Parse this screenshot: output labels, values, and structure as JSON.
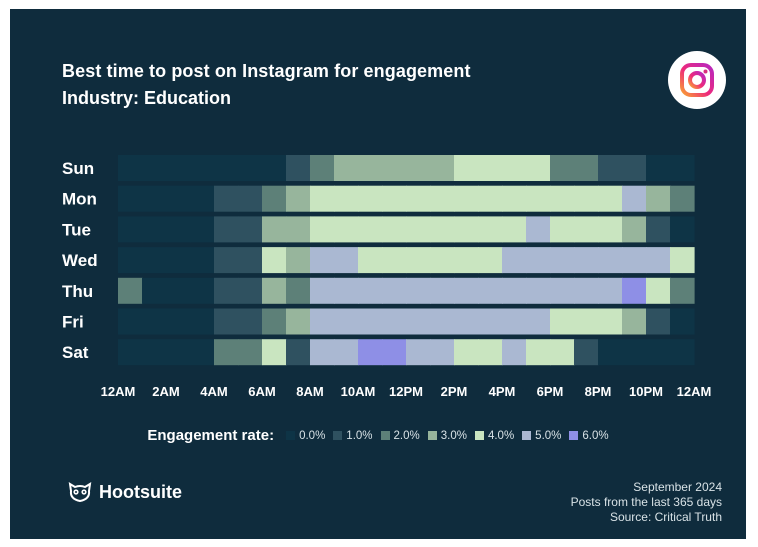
{
  "title": "Best time to post on Instagram for engagement",
  "subtitle": "Industry: Education",
  "brand": "Hootsuite",
  "footer": {
    "date": "September 2024",
    "posts": "Posts from the last 365 days",
    "source": "Source: Critical Truth"
  },
  "colors": {
    "background": "#0f2c3d",
    "scale": [
      "#0e3446",
      "#2f5160",
      "#5d8078",
      "#97b59c",
      "#c9e5c0",
      "#aab8d2",
      "#8e8fe6"
    ]
  },
  "chart_data": {
    "type": "heatmap",
    "title": "Best time to post on Instagram for engagement",
    "subtitle": "Industry: Education",
    "rows": [
      "Sun",
      "Mon",
      "Tue",
      "Wed",
      "Thu",
      "Fri",
      "Sat"
    ],
    "x_tick_labels": [
      "12AM",
      "2AM",
      "4AM",
      "6AM",
      "8AM",
      "10AM",
      "12PM",
      "2PM",
      "4PM",
      "6PM",
      "8PM",
      "10PM",
      "12AM"
    ],
    "hours": [
      0,
      1,
      2,
      3,
      4,
      5,
      6,
      7,
      8,
      9,
      10,
      11,
      12,
      13,
      14,
      15,
      16,
      17,
      18,
      19,
      20,
      21,
      22,
      23
    ],
    "legend_title": "Engagement rate:",
    "legend": [
      "0.0%",
      "1.0%",
      "2.0%",
      "3.0%",
      "4.0%",
      "5.0%",
      "6.0%"
    ],
    "legend_values": [
      0,
      1,
      2,
      3,
      4,
      5,
      6
    ],
    "values": [
      [
        0,
        0,
        0,
        0,
        0,
        0,
        0,
        1,
        2,
        3,
        3,
        3,
        3,
        3,
        4,
        4,
        4,
        4,
        2,
        2,
        1,
        1,
        0,
        0
      ],
      [
        0,
        0,
        0,
        0,
        1,
        1,
        2,
        3,
        4,
        4,
        4,
        4,
        4,
        4,
        4,
        4,
        4,
        4,
        4,
        4,
        4,
        5,
        3,
        2
      ],
      [
        0,
        0,
        0,
        0,
        1,
        1,
        3,
        3,
        4,
        4,
        4,
        4,
        4,
        4,
        4,
        4,
        4,
        5,
        4,
        4,
        4,
        3,
        1,
        0
      ],
      [
        0,
        0,
        0,
        0,
        1,
        1,
        4,
        3,
        5,
        5,
        4,
        4,
        4,
        4,
        4,
        4,
        5,
        5,
        5,
        5,
        5,
        5,
        5,
        4
      ],
      [
        2,
        0,
        0,
        0,
        1,
        1,
        3,
        2,
        5,
        5,
        5,
        5,
        5,
        5,
        5,
        5,
        5,
        5,
        5,
        5,
        5,
        6,
        4,
        2
      ],
      [
        0,
        0,
        0,
        0,
        1,
        1,
        2,
        3,
        5,
        5,
        5,
        5,
        5,
        5,
        5,
        5,
        5,
        5,
        4,
        4,
        4,
        3,
        1,
        0
      ],
      [
        0,
        0,
        0,
        0,
        2,
        2,
        4,
        1,
        5,
        5,
        6,
        6,
        5,
        5,
        4,
        4,
        5,
        4,
        4,
        1,
        0,
        0,
        0,
        0
      ]
    ]
  }
}
